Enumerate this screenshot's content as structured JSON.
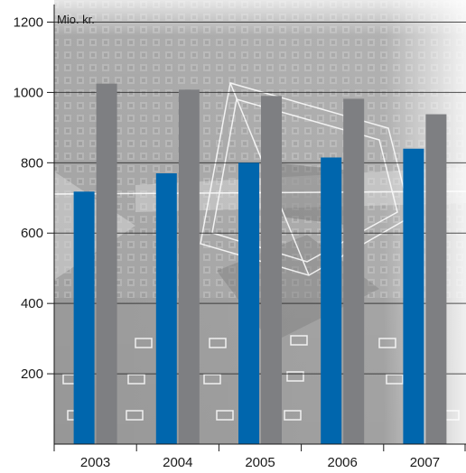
{
  "chart_data": {
    "type": "bar",
    "unit_label": "Mio. kr.",
    "categories": [
      "2003",
      "2004",
      "2005",
      "2006",
      "2007"
    ],
    "series": [
      {
        "values": [
          718,
          770,
          800,
          815,
          840
        ]
      },
      {
        "values": [
          1025,
          1008,
          990,
          982,
          938
        ]
      }
    ],
    "ylim": [
      0,
      1250
    ],
    "yticks": [
      200,
      400,
      600,
      800,
      1000,
      1200
    ],
    "grid": true,
    "colors": {
      "series_0": "#0066ad",
      "series_1": "#7e7f82",
      "grid": "#1a1a1a",
      "axis": "#1a1a1a"
    }
  }
}
